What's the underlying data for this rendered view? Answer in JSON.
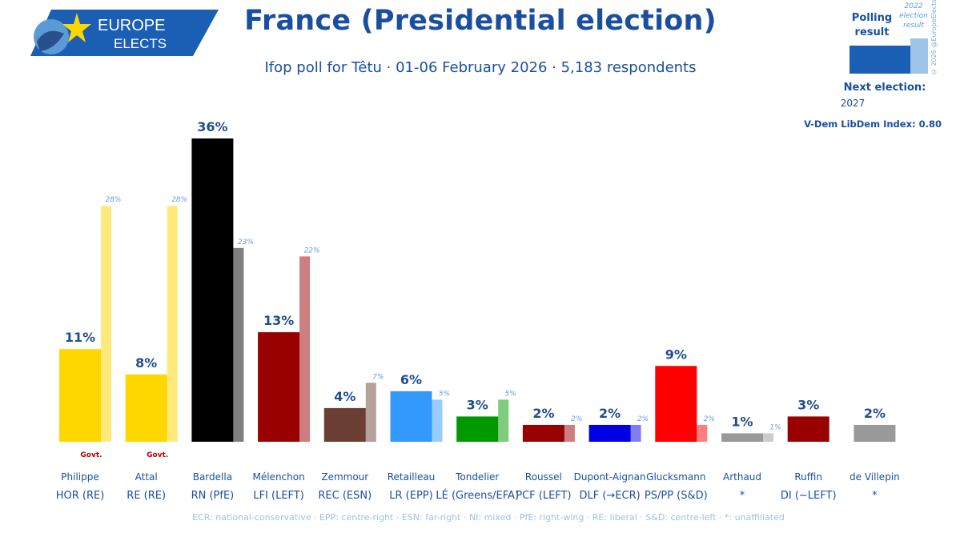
{
  "logo": {
    "line1": "EUROPE",
    "line2": "ELECTS"
  },
  "header": {
    "title": "France (Presidential election)",
    "subtitle": "Ifop poll for Têtu · 01-06 February 2026 · 5,183 respondents"
  },
  "legend": {
    "polling_label_1": "Polling",
    "polling_label_2": "result",
    "result_label_1": "2022",
    "result_label_2": "election",
    "result_label_3": "result",
    "copyright": "© 2026 @EuropeElects",
    "next_election_label": "Next election:",
    "next_election_year": "2027",
    "vdem": "V-Dem LibDem Index: 0.80"
  },
  "colors": {
    "brand": "#1a4fa0",
    "value_label": "#1f4e8c",
    "prev_label": "#6a9fd4",
    "govt_label": "#c00000",
    "party_label": "#1a4fa0"
  },
  "chart_data": {
    "type": "bar",
    "title": "France (Presidential election)",
    "ylim": [
      0,
      40
    ],
    "series": [
      {
        "name": "Polling result",
        "values": [
          11,
          8,
          36,
          13,
          4,
          6,
          3,
          2,
          2,
          9,
          1,
          3,
          2
        ]
      },
      {
        "name": "2022 election result",
        "values": [
          28,
          28,
          23,
          22,
          7,
          5,
          5,
          2,
          2,
          2,
          1,
          null,
          null
        ]
      }
    ],
    "categories": [
      {
        "name": "Philippe",
        "party": "HOR (RE)",
        "value": 11,
        "value_label": "11%",
        "prev": 28,
        "prev_label": "28%",
        "govt": true,
        "color": "#ffd700",
        "prev_color": "#ffe97a"
      },
      {
        "name": "Attal",
        "party": "RE (RE)",
        "value": 8,
        "value_label": "8%",
        "prev": 28,
        "prev_label": "28%",
        "govt": true,
        "color": "#ffd700",
        "prev_color": "#ffe97a"
      },
      {
        "name": "Bardella",
        "party": "RN (PfE)",
        "value": 36,
        "value_label": "36%",
        "prev": 23,
        "prev_label": "23%",
        "govt": false,
        "color": "#000000",
        "prev_color": "#7f7f7f"
      },
      {
        "name": "Mélenchon",
        "party": "LFI (LEFT)",
        "value": 13,
        "value_label": "13%",
        "prev": 22,
        "prev_label": "22%",
        "govt": false,
        "color": "#990000",
        "prev_color": "#cc7f7f"
      },
      {
        "name": "Zemmour",
        "party": "REC (ESN)",
        "value": 4,
        "value_label": "4%",
        "prev": 7,
        "prev_label": "7%",
        "govt": false,
        "color": "#6b3f34",
        "prev_color": "#b5a09a"
      },
      {
        "name": "Retailleau",
        "party": "LR (EPP)",
        "value": 6,
        "value_label": "6%",
        "prev": 5,
        "prev_label": "5%",
        "govt": false,
        "color": "#3399ff",
        "prev_color": "#99ccff"
      },
      {
        "name": "Tondelier",
        "party": "LÉ (Greens/EFA)",
        "value": 3,
        "value_label": "3%",
        "prev": 5,
        "prev_label": "5%",
        "govt": false,
        "color": "#009900",
        "prev_color": "#7fcc7f"
      },
      {
        "name": "Roussel",
        "party": "PCF (LEFT)",
        "value": 2,
        "value_label": "2%",
        "prev": 2,
        "prev_label": "2%",
        "govt": false,
        "color": "#990000",
        "prev_color": "#cc7f7f"
      },
      {
        "name": "Dupont-Aignan",
        "party": "DLF (→ECR)",
        "value": 2,
        "value_label": "2%",
        "prev": 2,
        "prev_label": "2%",
        "govt": false,
        "color": "#0000e6",
        "prev_color": "#7f7ff2"
      },
      {
        "name": "Glucksmann",
        "party": "PS/PP (S&D)",
        "value": 9,
        "value_label": "9%",
        "prev": 2,
        "prev_label": "2%",
        "govt": false,
        "color": "#ff0000",
        "prev_color": "#ff7f7f"
      },
      {
        "name": "Arthaud",
        "party": "*",
        "value": 1,
        "value_label": "1%",
        "prev": 1,
        "prev_label": "1%",
        "govt": false,
        "color": "#999999",
        "prev_color": "#cccccc"
      },
      {
        "name": "Ruffin",
        "party": "DI (~LEFT)",
        "value": 3,
        "value_label": "3%",
        "prev": null,
        "prev_label": "",
        "govt": false,
        "color": "#990000",
        "prev_color": null
      },
      {
        "name": "de Villepin",
        "party": "*",
        "value": 2,
        "value_label": "2%",
        "prev": null,
        "prev_label": "",
        "govt": false,
        "color": "#999999",
        "prev_color": null
      }
    ],
    "govt_label": "Govt.",
    "footer": "ECR: national-conservative · EPP: centre-right · ESN: far-right · NI: mixed · PfE: right-wing · RE: liberal · S&D: centre-left · *: unaffiliated"
  }
}
